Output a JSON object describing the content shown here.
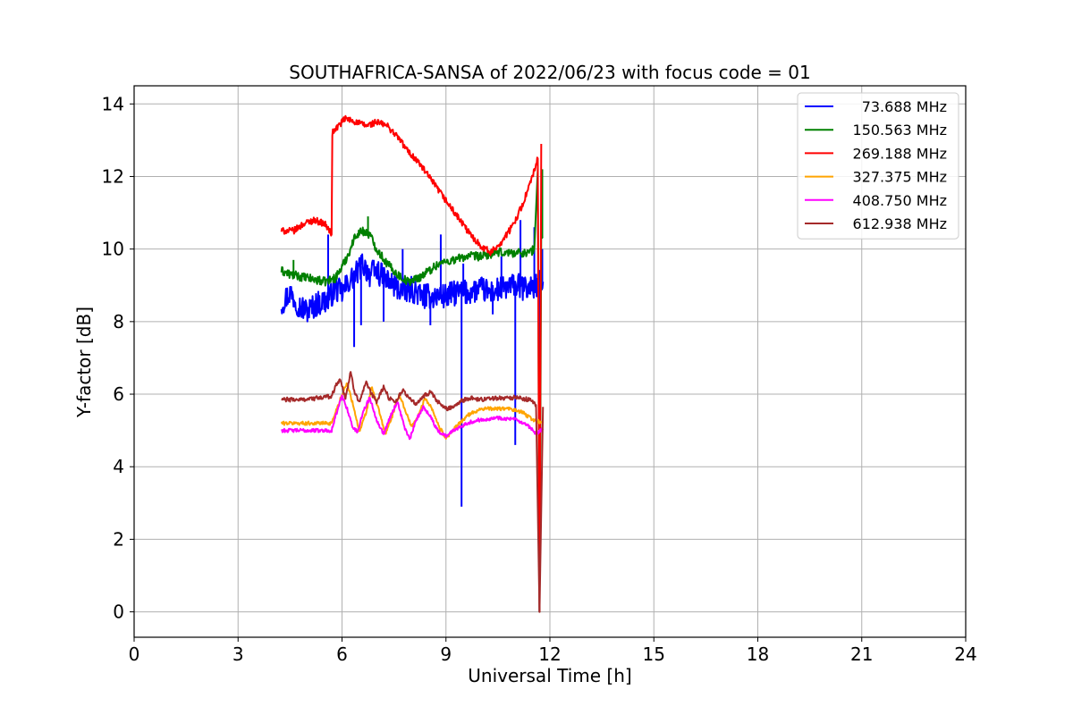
{
  "chart_data": {
    "type": "line",
    "title": "SOUTHAFRICA-SANSA of 2022/06/23 with focus code = 01",
    "xlabel": "Universal Time [h]",
    "ylabel": "Y-factor [dB]",
    "xlim": [
      0,
      24
    ],
    "ylim": [
      -0.7,
      14.5
    ],
    "xticks": [
      0,
      3,
      6,
      9,
      12,
      15,
      18,
      21,
      24
    ],
    "yticks": [
      0,
      2,
      4,
      6,
      8,
      10,
      12,
      14
    ],
    "grid": true,
    "legend_position": "top-right",
    "series": [
      {
        "name": "73.688 MHz",
        "color": "#0000ff",
        "points": [
          [
            4.25,
            8.5
          ],
          [
            4.5,
            8.8
          ],
          [
            4.8,
            8.4
          ],
          [
            5.0,
            8.3
          ],
          [
            5.3,
            8.5
          ],
          [
            5.6,
            8.6
          ],
          [
            5.8,
            8.9
          ],
          [
            6.0,
            8.8
          ],
          [
            6.2,
            9.1
          ],
          [
            6.4,
            9.3
          ],
          [
            6.6,
            9.6
          ],
          [
            6.8,
            9.3
          ],
          [
            7.0,
            9.4
          ],
          [
            7.2,
            9.2
          ],
          [
            7.5,
            9.0
          ],
          [
            7.8,
            8.8
          ],
          [
            8.0,
            8.9
          ],
          [
            8.3,
            8.7
          ],
          [
            8.6,
            8.7
          ],
          [
            9.0,
            8.7
          ],
          [
            9.3,
            8.8
          ],
          [
            9.6,
            8.8
          ],
          [
            10.0,
            8.9
          ],
          [
            10.3,
            8.8
          ],
          [
            10.6,
            8.9
          ],
          [
            11.0,
            9.0
          ],
          [
            11.3,
            8.9
          ],
          [
            11.6,
            9.0
          ],
          [
            11.8,
            9.1
          ]
        ],
        "spikes": [
          [
            5.6,
            10.4
          ],
          [
            6.35,
            7.3
          ],
          [
            6.55,
            7.9
          ],
          [
            7.2,
            8.0
          ],
          [
            7.75,
            10.0
          ],
          [
            8.55,
            7.9
          ],
          [
            8.85,
            10.4
          ],
          [
            9.45,
            2.9
          ],
          [
            9.5,
            9.6
          ],
          [
            10.35,
            8.2
          ],
          [
            10.6,
            9.8
          ],
          [
            11.0,
            4.6
          ],
          [
            11.15,
            10.8
          ],
          [
            11.55,
            10.6
          ],
          [
            11.7,
            0.0
          ],
          [
            11.78,
            10.0
          ]
        ]
      },
      {
        "name": "150.563 MHz",
        "color": "#008000",
        "points": [
          [
            4.25,
            9.4
          ],
          [
            4.5,
            9.3
          ],
          [
            5.0,
            9.2
          ],
          [
            5.5,
            9.1
          ],
          [
            5.8,
            9.2
          ],
          [
            6.0,
            9.5
          ],
          [
            6.2,
            9.9
          ],
          [
            6.4,
            10.4
          ],
          [
            6.6,
            10.5
          ],
          [
            6.8,
            10.4
          ],
          [
            7.0,
            10.0
          ],
          [
            7.3,
            9.6
          ],
          [
            7.6,
            9.3
          ],
          [
            7.9,
            9.1
          ],
          [
            8.2,
            9.2
          ],
          [
            8.5,
            9.4
          ],
          [
            8.8,
            9.6
          ],
          [
            9.2,
            9.7
          ],
          [
            9.6,
            9.8
          ],
          [
            10.0,
            9.8
          ],
          [
            10.5,
            9.9
          ],
          [
            11.0,
            9.9
          ],
          [
            11.4,
            9.9
          ],
          [
            11.55,
            10.0
          ],
          [
            11.65,
            12.2
          ],
          [
            11.7,
            0.0
          ],
          [
            11.75,
            10.4
          ],
          [
            11.8,
            10.3
          ]
        ],
        "spikes": [
          [
            6.75,
            10.9
          ],
          [
            4.6,
            9.7
          ],
          [
            11.78,
            12.2
          ]
        ]
      },
      {
        "name": "269.188 MHz",
        "color": "#ff0000",
        "points": [
          [
            4.25,
            10.5
          ],
          [
            4.6,
            10.5
          ],
          [
            4.9,
            10.7
          ],
          [
            5.2,
            10.8
          ],
          [
            5.5,
            10.7
          ],
          [
            5.7,
            10.4
          ],
          [
            5.72,
            13.2
          ],
          [
            5.9,
            13.4
          ],
          [
            6.1,
            13.6
          ],
          [
            6.4,
            13.5
          ],
          [
            6.7,
            13.4
          ],
          [
            7.0,
            13.5
          ],
          [
            7.3,
            13.4
          ],
          [
            7.6,
            13.1
          ],
          [
            7.9,
            12.7
          ],
          [
            8.2,
            12.4
          ],
          [
            8.5,
            12.0
          ],
          [
            8.8,
            11.6
          ],
          [
            9.1,
            11.2
          ],
          [
            9.4,
            10.8
          ],
          [
            9.7,
            10.4
          ],
          [
            10.0,
            10.1
          ],
          [
            10.3,
            9.9
          ],
          [
            10.6,
            10.2
          ],
          [
            10.9,
            10.6
          ],
          [
            11.2,
            11.2
          ],
          [
            11.5,
            12.0
          ],
          [
            11.65,
            12.5
          ],
          [
            11.7,
            0.0
          ],
          [
            11.75,
            12.9
          ]
        ],
        "spikes": []
      },
      {
        "name": "327.375 MHz",
        "color": "#ffa500",
        "points": [
          [
            4.25,
            5.2
          ],
          [
            5.0,
            5.2
          ],
          [
            5.7,
            5.2
          ],
          [
            5.85,
            5.6
          ],
          [
            6.0,
            6.0
          ],
          [
            6.15,
            6.3
          ],
          [
            6.35,
            5.6
          ],
          [
            6.5,
            4.95
          ],
          [
            6.7,
            5.5
          ],
          [
            6.85,
            6.2
          ],
          [
            7.05,
            5.6
          ],
          [
            7.25,
            4.9
          ],
          [
            7.45,
            5.4
          ],
          [
            7.65,
            6.0
          ],
          [
            7.85,
            5.5
          ],
          [
            8.0,
            5.1
          ],
          [
            8.2,
            5.4
          ],
          [
            8.4,
            5.9
          ],
          [
            8.6,
            5.6
          ],
          [
            8.8,
            5.1
          ],
          [
            9.0,
            4.8
          ],
          [
            9.3,
            5.1
          ],
          [
            9.6,
            5.4
          ],
          [
            10.0,
            5.6
          ],
          [
            10.4,
            5.6
          ],
          [
            10.8,
            5.6
          ],
          [
            11.2,
            5.5
          ],
          [
            11.5,
            5.3
          ],
          [
            11.8,
            5.2
          ]
        ],
        "spikes": []
      },
      {
        "name": "408.750 MHz",
        "color": "#ff00ff",
        "points": [
          [
            4.25,
            5.0
          ],
          [
            5.0,
            5.0
          ],
          [
            5.7,
            5.0
          ],
          [
            5.85,
            5.5
          ],
          [
            6.0,
            5.95
          ],
          [
            6.15,
            5.6
          ],
          [
            6.3,
            5.1
          ],
          [
            6.45,
            4.95
          ],
          [
            6.6,
            5.5
          ],
          [
            6.8,
            5.9
          ],
          [
            7.0,
            5.3
          ],
          [
            7.2,
            4.9
          ],
          [
            7.4,
            5.4
          ],
          [
            7.6,
            5.8
          ],
          [
            7.8,
            5.1
          ],
          [
            7.95,
            4.75
          ],
          [
            8.15,
            5.3
          ],
          [
            8.35,
            5.65
          ],
          [
            8.55,
            5.4
          ],
          [
            8.75,
            5.0
          ],
          [
            9.0,
            4.85
          ],
          [
            9.3,
            5.05
          ],
          [
            9.6,
            5.2
          ],
          [
            10.0,
            5.3
          ],
          [
            10.5,
            5.35
          ],
          [
            11.0,
            5.3
          ],
          [
            11.4,
            5.1
          ],
          [
            11.6,
            4.9
          ],
          [
            11.8,
            5.05
          ]
        ],
        "spikes": []
      },
      {
        "name": "612.938 MHz",
        "color": "#a52a2a",
        "points": [
          [
            4.25,
            5.85
          ],
          [
            4.8,
            5.85
          ],
          [
            5.4,
            5.9
          ],
          [
            5.7,
            5.95
          ],
          [
            5.85,
            6.3
          ],
          [
            5.95,
            6.4
          ],
          [
            6.1,
            5.9
          ],
          [
            6.25,
            6.6
          ],
          [
            6.35,
            6.1
          ],
          [
            6.5,
            5.8
          ],
          [
            6.7,
            6.3
          ],
          [
            6.85,
            6.0
          ],
          [
            7.0,
            5.8
          ],
          [
            7.2,
            6.2
          ],
          [
            7.35,
            5.9
          ],
          [
            7.55,
            5.8
          ],
          [
            7.75,
            6.1
          ],
          [
            7.95,
            5.9
          ],
          [
            8.15,
            5.7
          ],
          [
            8.35,
            5.95
          ],
          [
            8.55,
            6.05
          ],
          [
            8.75,
            5.8
          ],
          [
            9.0,
            5.6
          ],
          [
            9.2,
            5.65
          ],
          [
            9.4,
            5.8
          ],
          [
            9.7,
            5.9
          ],
          [
            10.0,
            5.85
          ],
          [
            10.5,
            5.9
          ],
          [
            11.0,
            5.9
          ],
          [
            11.4,
            5.85
          ],
          [
            11.6,
            5.7
          ],
          [
            11.7,
            0.0
          ],
          [
            11.8,
            5.65
          ]
        ],
        "spikes": []
      }
    ]
  }
}
